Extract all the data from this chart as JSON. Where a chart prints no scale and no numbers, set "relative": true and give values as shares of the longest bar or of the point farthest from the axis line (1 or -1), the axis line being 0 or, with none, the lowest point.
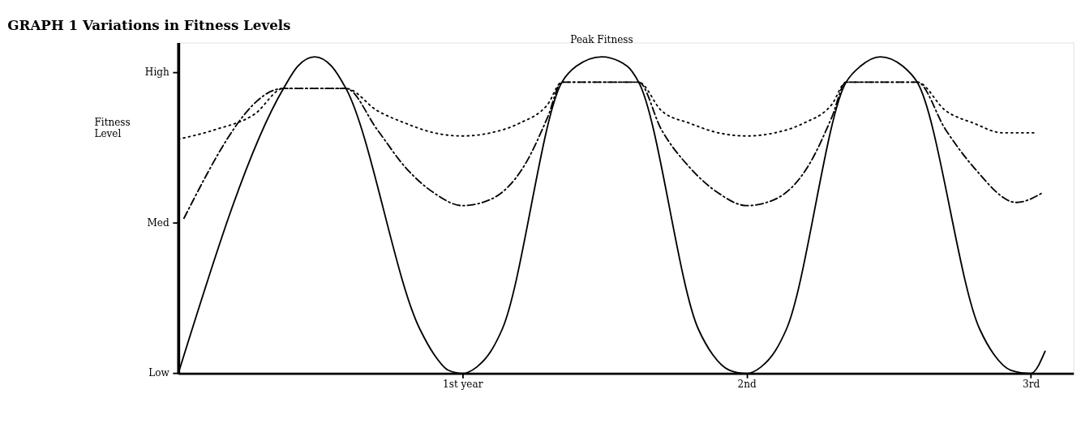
{
  "chart_data": {
    "type": "line",
    "title": "GRAPH 1  Variations in Fitness Levels",
    "ylabel": "Fitness Level",
    "relative": true,
    "xlim": [
      0,
      3.15
    ],
    "xticks": [
      {
        "value": 1,
        "label": "1st year"
      },
      {
        "value": 2,
        "label": "2nd"
      },
      {
        "value": 3,
        "label": "3rd"
      }
    ],
    "grid": false,
    "marker": "none",
    "annotations": [
      {
        "text": "Peak Fitness",
        "x": 1.49,
        "y": 1
      },
      "Low",
      "Med",
      "High"
    ],
    "series": [
      {
        "color": "#000000",
        "line_style": "solid",
        "x": [
          0,
          0.37,
          0.42,
          0.48,
          0.54,
          0.59,
          0.85,
          0.9,
          0.95,
          1.0,
          1.05,
          1.1,
          1.14,
          1.35,
          1.4,
          1.49,
          1.58,
          1.62,
          1.83,
          1.88,
          1.94,
          2.0,
          2.05,
          2.1,
          2.14,
          2.35,
          2.4,
          2.47,
          2.55,
          2.6,
          2.82,
          2.87,
          2.93,
          3.0,
          3.05
        ],
        "values": [
          0,
          0.9,
          0.97,
          1.0,
          0.97,
          0.9,
          0.14,
          0.06,
          0.01,
          0,
          0.02,
          0.07,
          0.14,
          0.92,
          0.97,
          1,
          0.97,
          0.92,
          0.14,
          0.06,
          0.01,
          0,
          0.02,
          0.07,
          0.14,
          0.92,
          0.97,
          1,
          0.97,
          0.92,
          0.14,
          0.06,
          0.01,
          0,
          0.07
        ]
      },
      {
        "color": "#000000",
        "line_style": "dotted",
        "x": [
          0,
          0.13,
          0.27,
          0.37,
          0.59,
          0.7,
          0.8,
          0.9,
          1.0,
          1.1,
          1.2,
          1.3,
          1.35,
          1.62,
          1.7,
          1.8,
          1.9,
          2.0,
          2.1,
          2.2,
          2.3,
          2.35,
          2.6,
          2.7,
          2.8,
          2.9,
          3.02
        ],
        "values": [
          0.74,
          0.77,
          0.82,
          0.9,
          0.9,
          0.83,
          0.79,
          0.76,
          0.75,
          0.76,
          0.79,
          0.85,
          0.92,
          0.92,
          0.83,
          0.79,
          0.76,
          0.75,
          0.76,
          0.79,
          0.85,
          0.92,
          0.92,
          0.83,
          0.79,
          0.76,
          0.76
        ]
      },
      {
        "color": "#000000",
        "line_style": "dashed",
        "x": [
          0.02,
          0.37,
          0.59,
          0.7,
          0.8,
          0.9,
          1.0,
          1.1,
          1.22,
          1.3,
          1.35,
          1.62,
          1.7,
          1.8,
          1.9,
          2.0,
          2.1,
          2.22,
          2.3,
          2.35,
          2.6,
          2.7,
          2.8,
          2.95,
          3.04
        ],
        "values": [
          0.49,
          0.9,
          0.9,
          0.77,
          0.65,
          0.57,
          0.53,
          0.55,
          0.66,
          0.81,
          0.92,
          0.92,
          0.77,
          0.65,
          0.57,
          0.53,
          0.55,
          0.66,
          0.81,
          0.92,
          0.92,
          0.77,
          0.65,
          0.54,
          0.57
        ]
      }
    ]
  }
}
